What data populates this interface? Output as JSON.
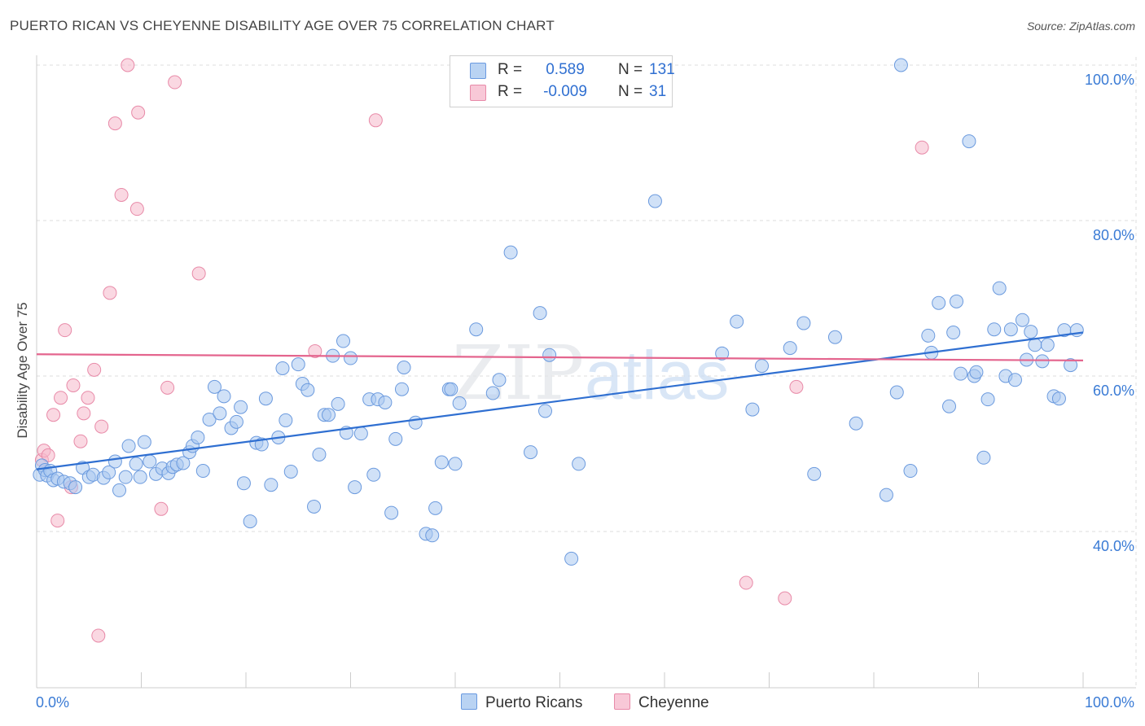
{
  "title": "PUERTO RICAN VS CHEYENNE DISABILITY AGE OVER 75 CORRELATION CHART",
  "source": "Source: ZipAtlas.com",
  "watermark": {
    "zip": "ZIP",
    "atlas": "atlas"
  },
  "legend": {
    "rows": [
      {
        "r_label": "R =",
        "r_value": "0.589",
        "n_label": "N =",
        "n_value": "131",
        "color": "#a9c8f0"
      },
      {
        "r_label": "R =",
        "r_value": "-0.009",
        "n_label": "N =",
        "n_value": "31",
        "color": "#f5b8cb"
      }
    ]
  },
  "bottom_legend": [
    {
      "label": "Puerto Ricans",
      "color": "#a9c8f0"
    },
    {
      "label": "Cheyenne",
      "color": "#f5b8cb"
    }
  ],
  "colors": {
    "blue": "#2f6fd1",
    "blue_fill": "#a9c8f0",
    "pink": "#e4658e",
    "pink_fill": "#f5b8cb",
    "grid": "#dddddd",
    "axis_label": "#3a7bd5"
  },
  "chart_data": {
    "type": "scatter",
    "title": "PUERTO RICAN VS CHEYENNE DISABILITY AGE OVER 75 CORRELATION CHART",
    "xlabel": "",
    "ylabel": "Disability Age Over 75",
    "xlim": [
      0,
      100
    ],
    "ylim": [
      20,
      102
    ],
    "x_tick_labels": [
      "0.0%",
      "100.0%"
    ],
    "y_ticks": [
      40,
      60,
      80,
      100
    ],
    "y_tick_labels": [
      "40.0%",
      "60.0%",
      "80.0%",
      "100.0%"
    ],
    "grid": true,
    "series": [
      {
        "name": "Puerto Ricans",
        "color": "#2f6fd1",
        "trend": {
          "x": [
            0,
            100
          ],
          "y": [
            48.0,
            65.6
          ]
        },
        "points": [
          [
            0.3,
            47.3
          ],
          [
            0.5,
            48.5
          ],
          [
            0.8,
            47.9
          ],
          [
            1.0,
            47.2
          ],
          [
            1.3,
            47.8
          ],
          [
            1.6,
            46.6
          ],
          [
            2.0,
            46.8
          ],
          [
            2.6,
            46.4
          ],
          [
            3.2,
            46.2
          ],
          [
            3.7,
            45.7
          ],
          [
            4.4,
            48.2
          ],
          [
            5.0,
            47.0
          ],
          [
            5.4,
            47.3
          ],
          [
            6.4,
            46.9
          ],
          [
            6.9,
            47.6
          ],
          [
            7.5,
            49.0
          ],
          [
            7.9,
            45.3
          ],
          [
            8.5,
            47.0
          ],
          [
            8.8,
            51.0
          ],
          [
            9.5,
            48.7
          ],
          [
            9.9,
            47.0
          ],
          [
            10.3,
            51.5
          ],
          [
            10.8,
            49.0
          ],
          [
            11.4,
            47.4
          ],
          [
            12.0,
            48.1
          ],
          [
            12.6,
            47.5
          ],
          [
            13.0,
            48.3
          ],
          [
            13.4,
            48.6
          ],
          [
            14.0,
            48.8
          ],
          [
            14.6,
            50.2
          ],
          [
            14.9,
            51.0
          ],
          [
            15.4,
            52.1
          ],
          [
            15.9,
            47.8
          ],
          [
            16.5,
            54.4
          ],
          [
            17.0,
            58.6
          ],
          [
            17.5,
            55.2
          ],
          [
            17.9,
            57.4
          ],
          [
            18.6,
            53.3
          ],
          [
            19.1,
            54.1
          ],
          [
            19.5,
            56.0
          ],
          [
            19.8,
            46.2
          ],
          [
            20.4,
            41.3
          ],
          [
            21.0,
            51.4
          ],
          [
            21.5,
            51.2
          ],
          [
            21.9,
            57.1
          ],
          [
            22.4,
            46.0
          ],
          [
            23.1,
            52.1
          ],
          [
            23.5,
            61.0
          ],
          [
            23.8,
            54.3
          ],
          [
            24.3,
            47.7
          ],
          [
            25.0,
            61.5
          ],
          [
            25.4,
            59.0
          ],
          [
            25.9,
            58.2
          ],
          [
            26.5,
            43.2
          ],
          [
            27.0,
            49.9
          ],
          [
            27.5,
            55.0
          ],
          [
            27.9,
            55.0
          ],
          [
            28.3,
            62.6
          ],
          [
            28.8,
            56.4
          ],
          [
            29.3,
            64.5
          ],
          [
            29.6,
            52.7
          ],
          [
            30.0,
            62.3
          ],
          [
            30.4,
            45.7
          ],
          [
            31.0,
            52.6
          ],
          [
            31.8,
            57.0
          ],
          [
            32.2,
            47.3
          ],
          [
            32.6,
            57.0
          ],
          [
            33.3,
            56.6
          ],
          [
            33.9,
            42.4
          ],
          [
            34.3,
            51.9
          ],
          [
            34.9,
            58.3
          ],
          [
            35.1,
            61.1
          ],
          [
            36.2,
            54.0
          ],
          [
            37.2,
            39.7
          ],
          [
            37.8,
            39.5
          ],
          [
            38.1,
            43.0
          ],
          [
            38.7,
            48.9
          ],
          [
            39.4,
            58.3
          ],
          [
            39.6,
            58.3
          ],
          [
            40.0,
            48.7
          ],
          [
            40.4,
            56.5
          ],
          [
            42.0,
            66.0
          ],
          [
            43.6,
            57.8
          ],
          [
            44.2,
            59.5
          ],
          [
            45.3,
            75.9
          ],
          [
            47.2,
            50.2
          ],
          [
            48.1,
            68.1
          ],
          [
            48.6,
            55.5
          ],
          [
            49.0,
            62.7
          ],
          [
            51.1,
            36.5
          ],
          [
            51.8,
            48.7
          ],
          [
            59.1,
            82.5
          ],
          [
            65.5,
            62.9
          ],
          [
            66.9,
            67.0
          ],
          [
            68.4,
            55.7
          ],
          [
            69.3,
            61.3
          ],
          [
            72.0,
            63.6
          ],
          [
            73.3,
            66.8
          ],
          [
            74.3,
            47.4
          ],
          [
            76.3,
            65.0
          ],
          [
            78.3,
            53.9
          ],
          [
            81.2,
            44.7
          ],
          [
            82.2,
            57.9
          ],
          [
            82.6,
            100.0
          ],
          [
            83.5,
            47.8
          ],
          [
            85.2,
            65.2
          ],
          [
            85.5,
            63.0
          ],
          [
            86.2,
            69.4
          ],
          [
            87.2,
            56.1
          ],
          [
            87.6,
            65.6
          ],
          [
            87.9,
            69.6
          ],
          [
            88.3,
            60.3
          ],
          [
            89.1,
            90.2
          ],
          [
            89.6,
            60.0
          ],
          [
            89.8,
            60.5
          ],
          [
            90.5,
            49.5
          ],
          [
            90.9,
            57.0
          ],
          [
            91.5,
            66.0
          ],
          [
            92.0,
            71.3
          ],
          [
            92.6,
            60.0
          ],
          [
            93.1,
            66.0
          ],
          [
            93.5,
            59.5
          ],
          [
            94.2,
            67.2
          ],
          [
            94.6,
            62.1
          ],
          [
            95.0,
            65.7
          ],
          [
            95.4,
            64.0
          ],
          [
            96.1,
            61.9
          ],
          [
            96.6,
            64.0
          ],
          [
            97.2,
            57.4
          ],
          [
            97.7,
            57.1
          ],
          [
            98.2,
            65.9
          ],
          [
            98.8,
            61.4
          ],
          [
            99.4,
            65.9
          ]
        ]
      },
      {
        "name": "Cheyenne",
        "color": "#e4658e",
        "trend": {
          "x": [
            0,
            100
          ],
          "y": [
            62.8,
            62.0
          ]
        },
        "points": [
          [
            0.5,
            49.2
          ],
          [
            0.7,
            50.4
          ],
          [
            1.1,
            49.8
          ],
          [
            1.6,
            55.0
          ],
          [
            2.0,
            41.4
          ],
          [
            2.3,
            57.2
          ],
          [
            2.7,
            65.9
          ],
          [
            3.3,
            45.7
          ],
          [
            3.5,
            58.8
          ],
          [
            4.2,
            51.6
          ],
          [
            4.5,
            55.2
          ],
          [
            4.9,
            57.2
          ],
          [
            5.5,
            60.8
          ],
          [
            5.9,
            26.6
          ],
          [
            6.2,
            53.5
          ],
          [
            7.0,
            70.7
          ],
          [
            7.5,
            92.5
          ],
          [
            8.1,
            83.3
          ],
          [
            8.7,
            100.0
          ],
          [
            9.7,
            93.9
          ],
          [
            9.6,
            81.5
          ],
          [
            11.9,
            42.9
          ],
          [
            12.5,
            58.5
          ],
          [
            13.2,
            97.8
          ],
          [
            15.5,
            73.2
          ],
          [
            26.6,
            63.2
          ],
          [
            32.4,
            92.9
          ],
          [
            67.8,
            33.4
          ],
          [
            71.5,
            31.4
          ],
          [
            72.6,
            58.6
          ],
          [
            84.6,
            89.4
          ]
        ]
      }
    ]
  }
}
